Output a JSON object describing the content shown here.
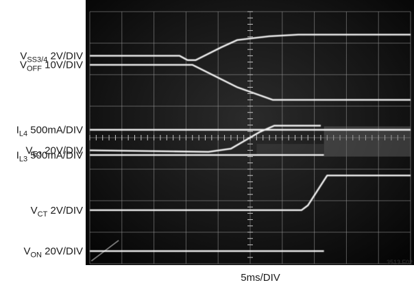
{
  "chart_data": {
    "type": "line",
    "time_base": "5ms/DIV",
    "divisions": [
      10,
      8
    ],
    "figure_id": "3513 F02",
    "channels": [
      {
        "name": "VSS3/4",
        "main": "V",
        "sub": "SS3/4",
        "scale": "2V/DIV",
        "trace": [
          [
            0,
            2.6
          ],
          [
            2.8,
            2.6
          ],
          [
            3.05,
            2.46
          ],
          [
            3.3,
            2.46
          ],
          [
            4.1,
            2.87
          ],
          [
            4.6,
            3.1
          ],
          [
            5.6,
            3.22
          ],
          [
            6.5,
            3.27
          ],
          [
            10,
            3.27
          ]
        ]
      },
      {
        "name": "VOFF",
        "main": "V",
        "sub": "OFF",
        "scale": "10V/DIV",
        "trace": [
          [
            0,
            2.31
          ],
          [
            3.2,
            2.31
          ],
          [
            4.6,
            1.6
          ],
          [
            5.7,
            1.2
          ],
          [
            10,
            1.2
          ]
        ]
      },
      {
        "name": "IL4",
        "main": "I",
        "sub": "L4",
        "scale": "500mA/DIV",
        "trace": [
          [
            0,
            0.25
          ],
          [
            10,
            0.25
          ]
        ]
      },
      {
        "name": "VE3",
        "main": "V",
        "sub": "E3",
        "scale": "20V/DIV",
        "trace": [
          [
            0,
            -0.4
          ],
          [
            3.7,
            -0.45
          ],
          [
            4.4,
            -0.35
          ],
          [
            5.3,
            0.18
          ],
          [
            5.75,
            0.38
          ],
          [
            7.2,
            0.38
          ]
        ]
      },
      {
        "name": "IL3",
        "main": "I",
        "sub": "L3",
        "scale": "500mA/DIV",
        "trace": [
          [
            0,
            -0.55
          ],
          [
            7.3,
            -0.55
          ]
        ]
      },
      {
        "name": "VCT",
        "main": "V",
        "sub": "CT",
        "scale": "2V/DIV",
        "trace": [
          [
            0,
            -2.3
          ],
          [
            6.6,
            -2.3
          ],
          [
            6.8,
            -2.15
          ],
          [
            7.4,
            -1.2
          ],
          [
            10,
            -1.2
          ]
        ]
      },
      {
        "name": "VON",
        "main": "V",
        "sub": "ON",
        "scale": "20V/DIV",
        "trace": [
          [
            0,
            -3.6
          ],
          [
            7.3,
            -3.6
          ]
        ]
      }
    ]
  }
}
